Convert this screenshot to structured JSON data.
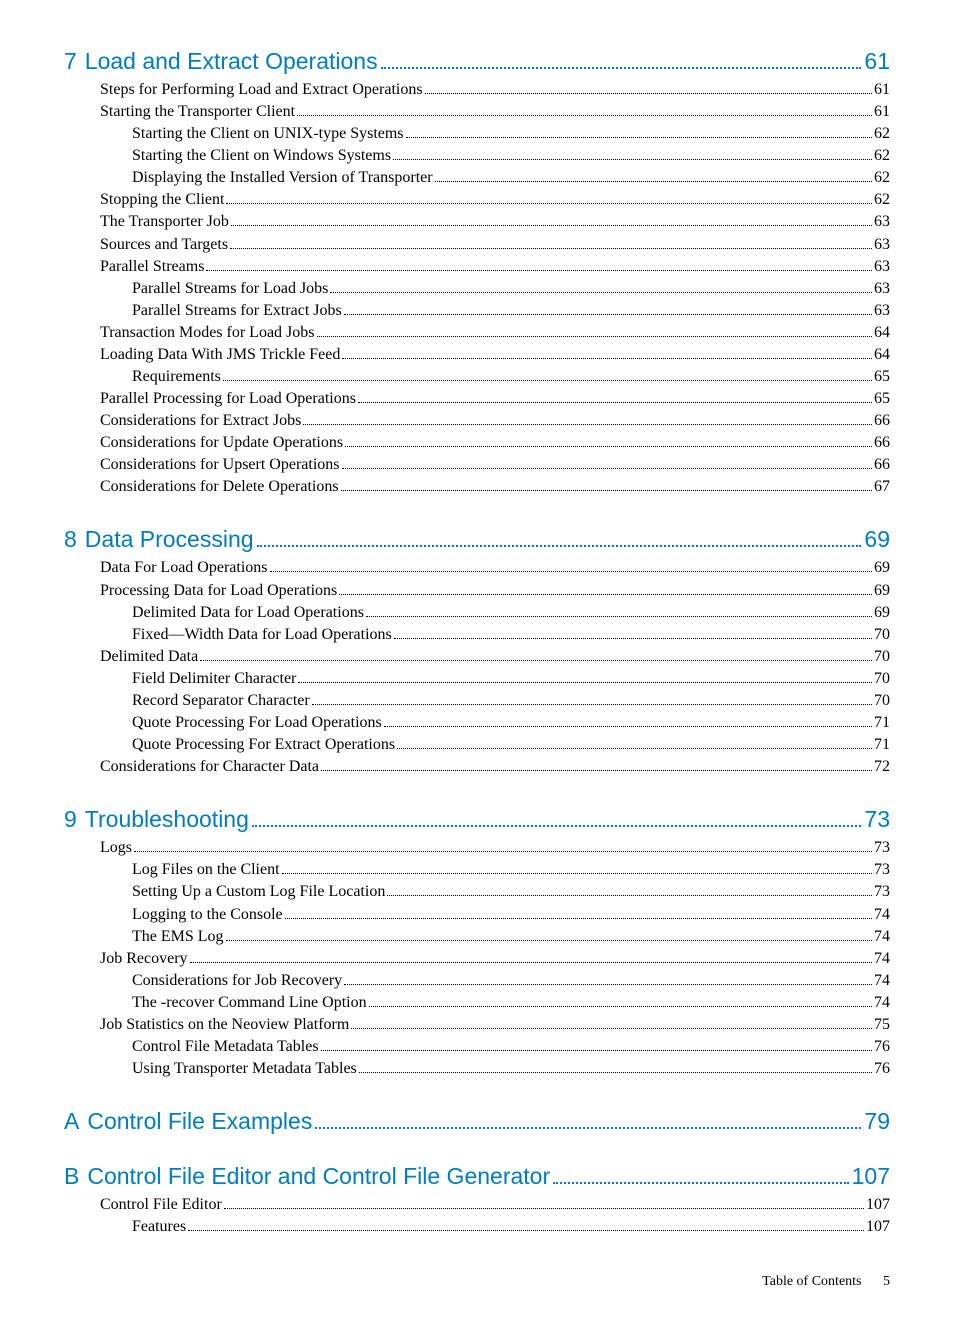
{
  "colors": {
    "chapter_color": "#007cc0",
    "body_color": "#000000",
    "background": "#ffffff"
  },
  "typography": {
    "chapter_font": "Arial, Helvetica, sans-serif",
    "chapter_fontsize_pt": 17,
    "body_font": "Book Antiqua, Palatino, Georgia, serif",
    "body_fontsize_pt": 12
  },
  "footer": {
    "label": "Table of Contents",
    "page_number": "5"
  },
  "sections": [
    {
      "chapter_num": "7",
      "chapter_title": "Load and Extract Operations ",
      "chapter_page": "61",
      "entries": [
        {
          "level": 1,
          "text": "Steps for Performing Load and Extract Operations",
          "page": "61"
        },
        {
          "level": 1,
          "text": "Starting the Transporter Client ",
          "page": "61"
        },
        {
          "level": 2,
          "text": "Starting the Client on UNIX-type Systems",
          "page": "62"
        },
        {
          "level": 2,
          "text": "Starting the Client on Windows Systems",
          "page": "62"
        },
        {
          "level": 2,
          "text": "Displaying the Installed Version of Transporter",
          "page": "62"
        },
        {
          "level": 1,
          "text": "Stopping the Client",
          "page": "62"
        },
        {
          "level": 1,
          "text": "The Transporter Job",
          "page": "63"
        },
        {
          "level": 1,
          "text": "Sources and Targets",
          "page": "63"
        },
        {
          "level": 1,
          "text": "Parallel Streams",
          "page": "63"
        },
        {
          "level": 2,
          "text": "Parallel Streams for Load Jobs",
          "page": "63"
        },
        {
          "level": 2,
          "text": "Parallel Streams for Extract Jobs",
          "page": "63"
        },
        {
          "level": 1,
          "text": "Transaction Modes for Load Jobs",
          "page": "64"
        },
        {
          "level": 1,
          "text": "Loading Data With JMS Trickle Feed",
          "page": "64"
        },
        {
          "level": 2,
          "text": "Requirements",
          "page": "65"
        },
        {
          "level": 1,
          "text": "Parallel Processing for Load Operations",
          "page": "65"
        },
        {
          "level": 1,
          "text": "Considerations for Extract Jobs",
          "page": "66"
        },
        {
          "level": 1,
          "text": "Considerations for Update Operations",
          "page": "66"
        },
        {
          "level": 1,
          "text": "Considerations for Upsert Operations ",
          "page": "66"
        },
        {
          "level": 1,
          "text": "Considerations for Delete Operations",
          "page": "67"
        }
      ]
    },
    {
      "chapter_num": "8",
      "chapter_title": "Data Processing",
      "chapter_page": "69",
      "entries": [
        {
          "level": 1,
          "text": "Data For Load Operations",
          "page": "69"
        },
        {
          "level": 1,
          "text": "Processing Data for Load Operations",
          "page": "69"
        },
        {
          "level": 2,
          "text": "Delimited Data for Load Operations",
          "page": "69"
        },
        {
          "level": 2,
          "text": "Fixed—Width Data for Load Operations",
          "page": "70"
        },
        {
          "level": 1,
          "text": "Delimited Data",
          "page": "70"
        },
        {
          "level": 2,
          "text": "Field Delimiter Character",
          "page": "70"
        },
        {
          "level": 2,
          "text": "Record Separator Character ",
          "page": "70"
        },
        {
          "level": 2,
          "text": "Quote Processing For Load Operations",
          "page": "71"
        },
        {
          "level": 2,
          "text": "Quote Processing For Extract Operations",
          "page": "71"
        },
        {
          "level": 1,
          "text": "Considerations for Character Data",
          "page": "72"
        }
      ]
    },
    {
      "chapter_num": "9",
      "chapter_title": "Troubleshooting",
      "chapter_page": "73",
      "entries": [
        {
          "level": 1,
          "text": "Logs",
          "page": "73"
        },
        {
          "level": 2,
          "text": "Log Files on the Client",
          "page": "73"
        },
        {
          "level": 2,
          "text": "Setting Up a Custom Log File Location",
          "page": "73"
        },
        {
          "level": 2,
          "text": "Logging to the Console",
          "page": "74"
        },
        {
          "level": 2,
          "text": "The EMS Log",
          "page": "74"
        },
        {
          "level": 1,
          "text": "Job Recovery",
          "page": "74"
        },
        {
          "level": 2,
          "text": "Considerations for Job Recovery",
          "page": "74"
        },
        {
          "level": 2,
          "text": "The -recover Command Line Option",
          "page": "74"
        },
        {
          "level": 1,
          "text": "Job Statistics on the Neoview Platform ",
          "page": "75"
        },
        {
          "level": 2,
          "text": "Control File Metadata Tables",
          "page": "76"
        },
        {
          "level": 2,
          "text": "Using Transporter Metadata Tables",
          "page": "76"
        }
      ]
    },
    {
      "chapter_num": "A",
      "chapter_title": "Control File Examples",
      "chapter_page": "79",
      "entries": []
    },
    {
      "chapter_num": "B",
      "chapter_title": "Control File Editor and Control File Generator",
      "chapter_page": "107",
      "entries": [
        {
          "level": 1,
          "text": "Control File Editor ",
          "page": "107"
        },
        {
          "level": 2,
          "text": "Features",
          "page": "107"
        }
      ]
    }
  ]
}
